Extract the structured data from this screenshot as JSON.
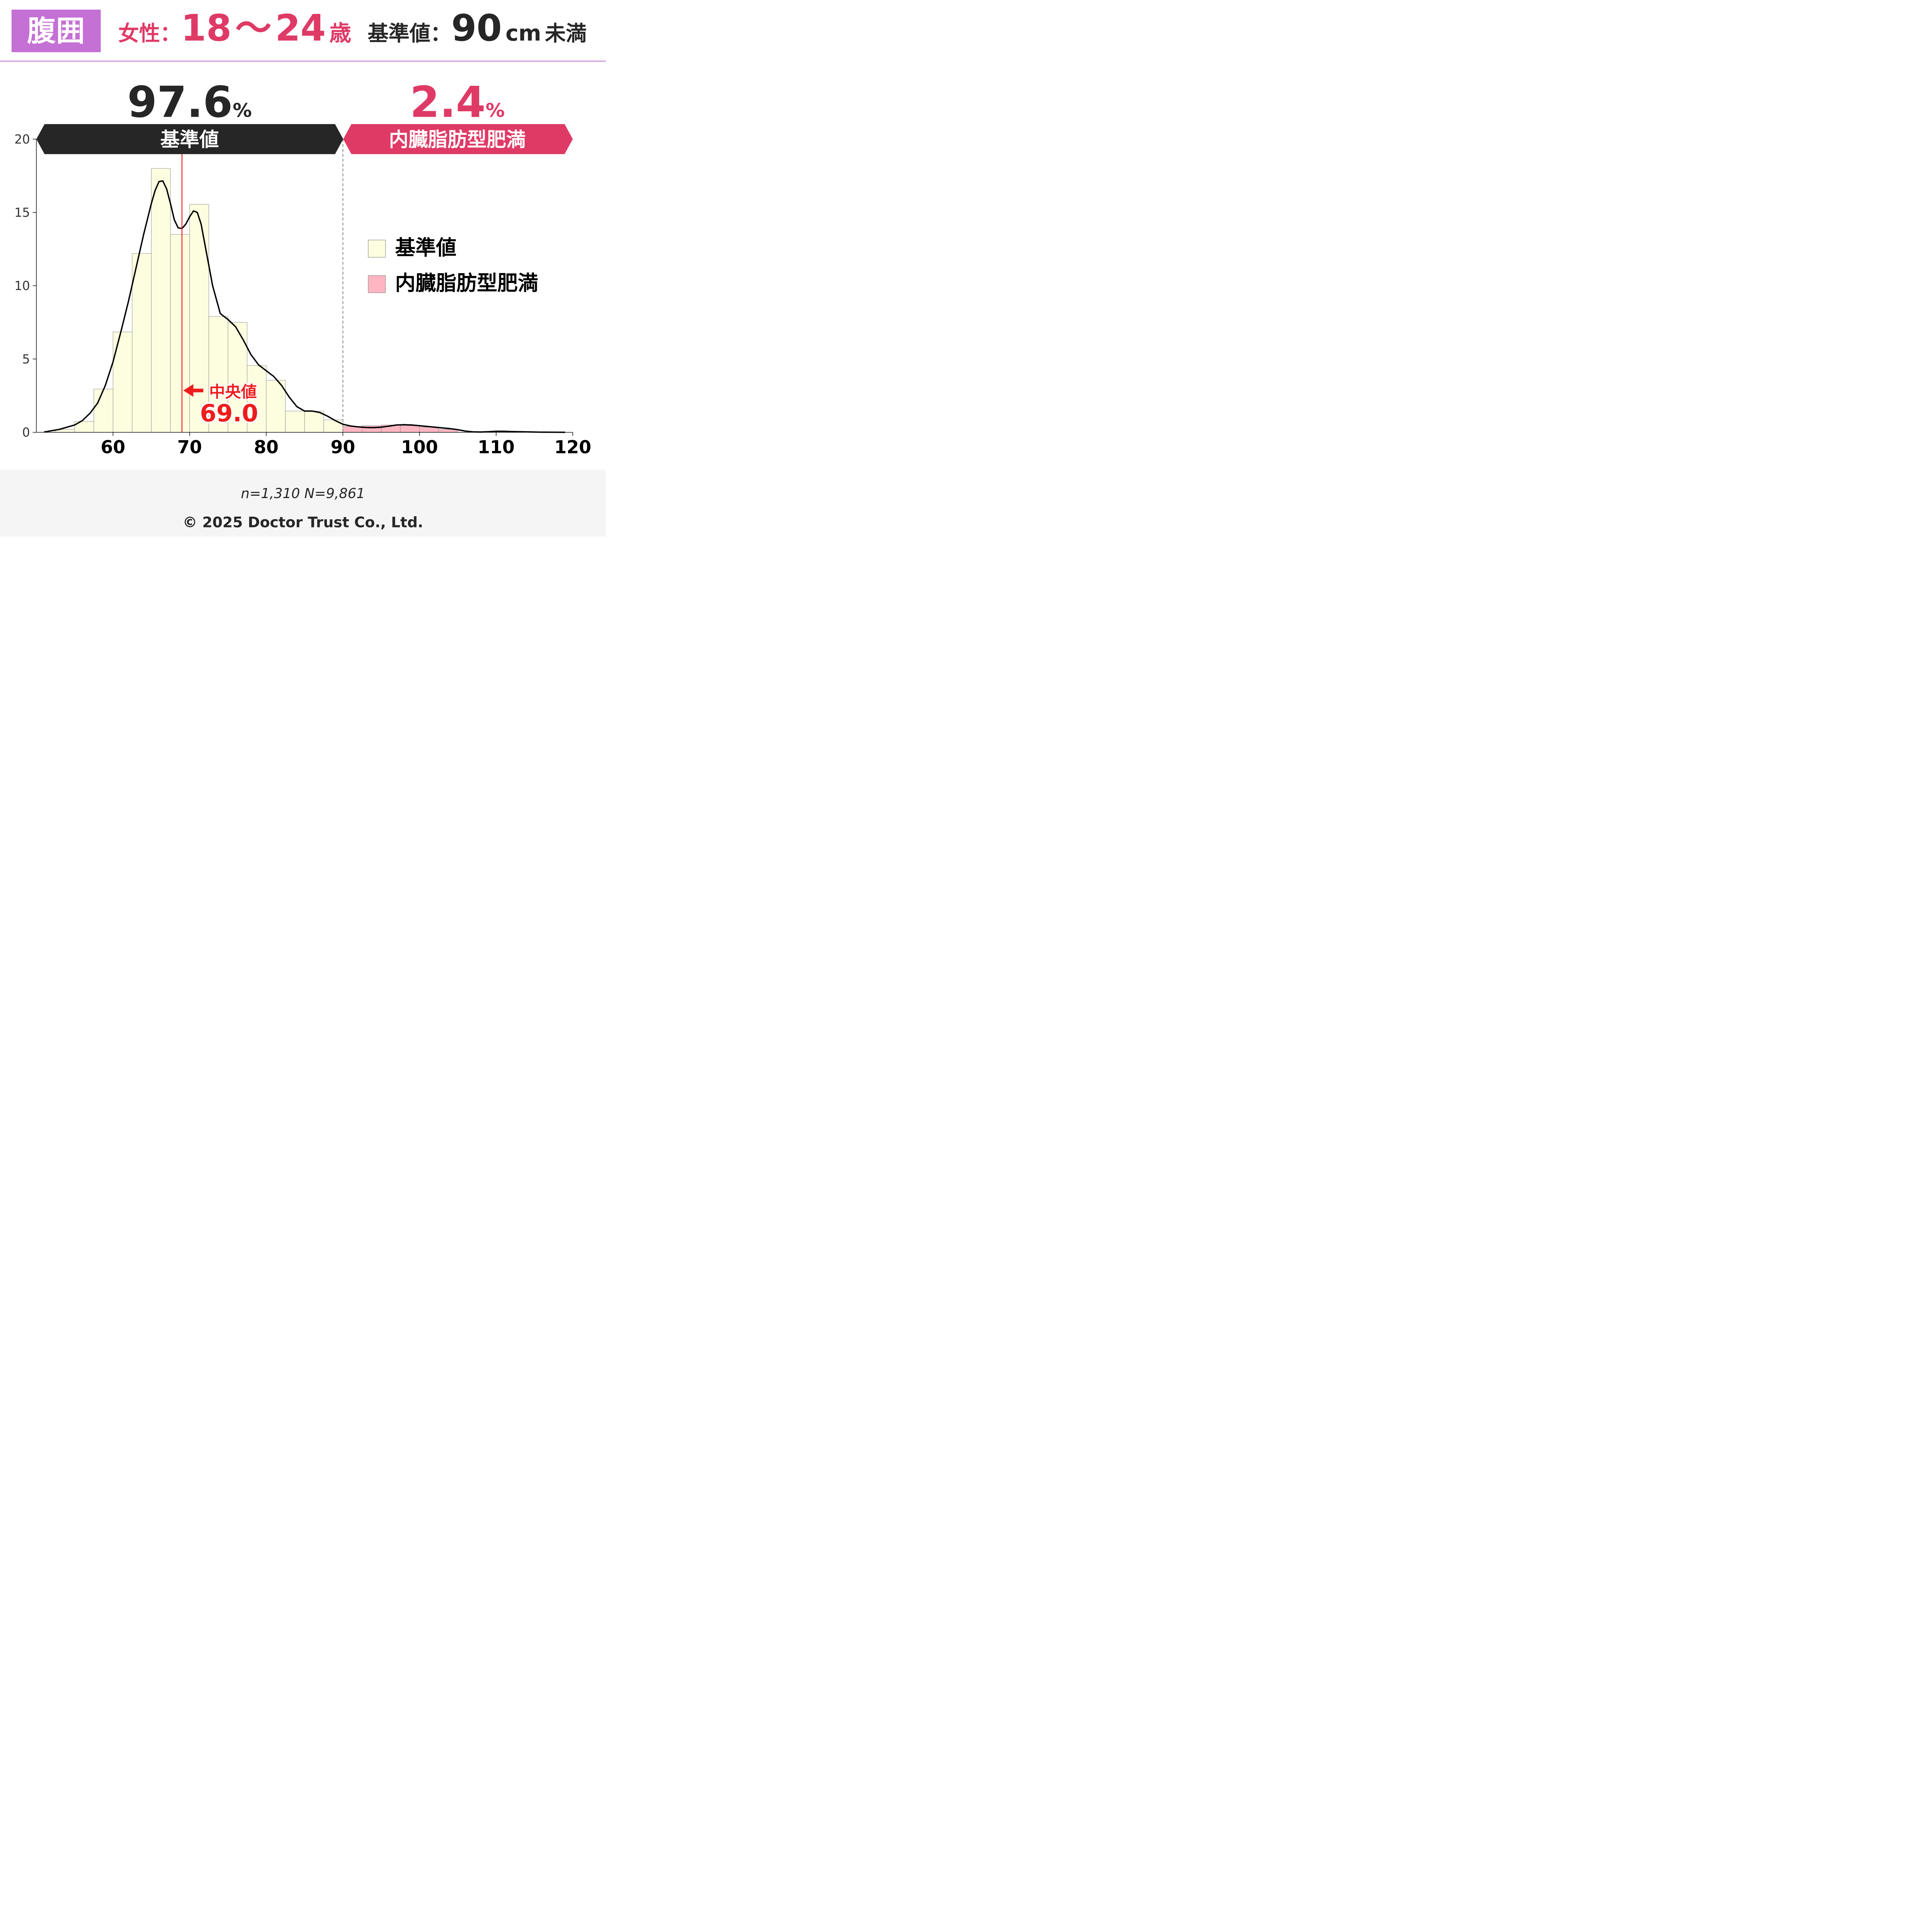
{
  "header": {
    "badge": "腹囲",
    "sex_label": "女性",
    "colon": "：",
    "age_from": "18",
    "age_sep": "～",
    "age_to": "24",
    "age_unit": "歳",
    "standard_label": "基準値",
    "standard_value": "90",
    "standard_unit": "cm",
    "standard_suffix": "未満"
  },
  "categories": [
    {
      "name": "基準値",
      "percent": "97.6",
      "percent_unit": "%",
      "color": "#262626",
      "fill": "#fdfde0",
      "percent_color": "#262626"
    },
    {
      "name": "内臓脂肪型肥満",
      "percent": "2.4",
      "percent_unit": "%",
      "color": "#df3a66",
      "fill": "#ffb6c2",
      "percent_color": "#df3a66"
    }
  ],
  "chart_data": {
    "type": "bar",
    "subtype": "histogram-with-density",
    "bin_width": 2.5,
    "bins_start": [
      52.5,
      55,
      57.5,
      60,
      62.5,
      65,
      67.5,
      70,
      72.5,
      75,
      77.5,
      80,
      82.5,
      85,
      87.5,
      90,
      92.5,
      95,
      97.5,
      100,
      102.5
    ],
    "values": [
      0.2,
      0.75,
      2.95,
      6.85,
      12.2,
      18.0,
      13.5,
      15.55,
      7.9,
      7.5,
      4.55,
      3.55,
      1.45,
      1.45,
      0.85,
      0.4,
      0.45,
      0.5,
      0.45,
      0.35,
      0.2
    ],
    "threshold": 90,
    "median": 69.0,
    "median_label": "中央値",
    "median_value": "69.0",
    "density_curve": {
      "x": [
        51,
        53,
        55,
        56,
        57,
        58,
        59,
        60,
        61,
        62,
        63,
        64,
        65,
        65.5,
        66,
        66.5,
        67,
        67.5,
        68,
        68.5,
        69,
        69.5,
        70,
        70.5,
        71,
        71.5,
        72,
        73,
        74,
        75,
        76,
        77,
        78,
        79,
        80,
        81,
        82,
        83,
        84,
        85,
        86,
        87,
        88,
        89,
        90,
        91,
        92,
        93,
        94,
        95,
        96,
        97,
        98,
        99,
        100,
        101,
        102,
        103,
        104,
        105,
        106,
        107,
        108,
        109,
        110,
        111,
        112,
        114,
        116,
        118,
        119
      ],
      "y": [
        0.02,
        0.2,
        0.5,
        0.8,
        1.3,
        2.0,
        3.2,
        4.8,
        6.8,
        8.9,
        11.2,
        13.5,
        15.6,
        16.5,
        17.1,
        17.15,
        16.6,
        15.6,
        14.5,
        13.95,
        13.9,
        14.2,
        14.7,
        15.1,
        15.0,
        14.2,
        12.8,
        10.0,
        8.1,
        7.7,
        7.2,
        6.3,
        5.3,
        4.6,
        4.2,
        3.8,
        3.2,
        2.4,
        1.75,
        1.45,
        1.45,
        1.35,
        1.1,
        0.8,
        0.55,
        0.43,
        0.37,
        0.33,
        0.32,
        0.35,
        0.42,
        0.5,
        0.52,
        0.5,
        0.45,
        0.4,
        0.35,
        0.3,
        0.25,
        0.18,
        0.08,
        0.03,
        0.02,
        0.04,
        0.07,
        0.07,
        0.05,
        0.03,
        0.01,
        0.005,
        0.0
      ]
    },
    "x_ticks": [
      60,
      70,
      80,
      90,
      100,
      110,
      120
    ],
    "y_ticks": [
      0,
      5,
      10,
      15,
      20
    ],
    "xlim": [
      50,
      120
    ],
    "ylim": [
      0,
      20
    ],
    "xlabel": "",
    "ylabel": "",
    "legend_position": "right",
    "curve_color": "#000000",
    "median_color": "#ee1c1c"
  },
  "footer": {
    "sample_note": "n=1,310   N=9,861",
    "copyright": "© 2025 Doctor Trust Co., Ltd."
  }
}
